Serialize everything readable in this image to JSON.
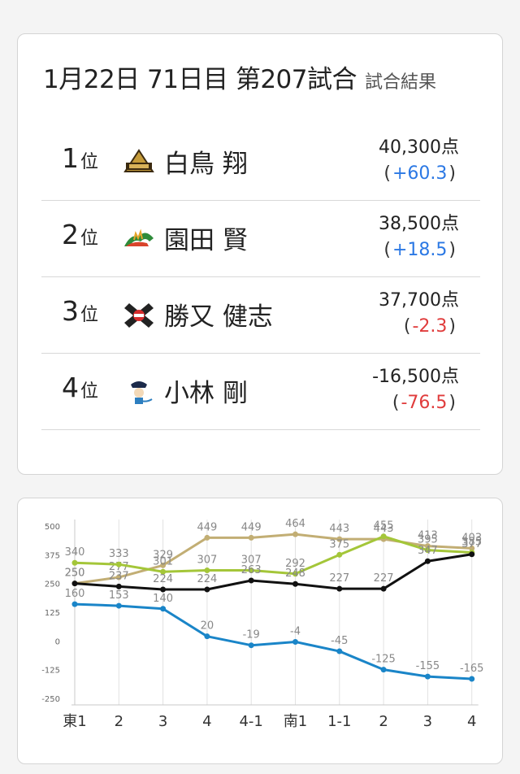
{
  "header": {
    "title": "1月22日 71日目 第207試合",
    "subtitle": "試合結果"
  },
  "results": [
    {
      "rank": "1",
      "rank_suffix": "位",
      "name": "白鳥 翔",
      "score": "40,300点",
      "delta": "+60.3",
      "sign": "pos",
      "team_icon": "gold-team-logo"
    },
    {
      "rank": "2",
      "rank_suffix": "位",
      "name": "園田 賢",
      "score": "38,500点",
      "delta": "+18.5",
      "sign": "pos",
      "team_icon": "green-dragon-team-logo"
    },
    {
      "rank": "3",
      "rank_suffix": "位",
      "name": "勝又 健志",
      "score": "37,700点",
      "delta": "-2.3",
      "sign": "neg",
      "team_icon": "red-x-team-logo"
    },
    {
      "rank": "4",
      "rank_suffix": "位",
      "name": "小林 剛",
      "score": "-16,500点",
      "delta": "-76.5",
      "sign": "neg",
      "team_icon": "pirate-team-logo"
    }
  ],
  "colors": {
    "positive": "#2b78e4",
    "negative": "#e03c3c"
  },
  "chart_data": {
    "type": "line",
    "categories": [
      "東1",
      "2",
      "3",
      "4",
      "4-1",
      "南1",
      "1-1",
      "2",
      "3",
      "4"
    ],
    "yticks": [
      "500",
      "375",
      "250",
      "125",
      "0",
      "-125",
      "-250"
    ],
    "ylim": [
      -250,
      500
    ],
    "grid": true,
    "series": [
      {
        "color": "#c2ae74",
        "values": [
          250,
          277,
          329,
          449,
          449,
          464,
          443,
          443,
          413,
          403
        ],
        "labels": [
          "250",
          "277",
          "329",
          "449",
          "449",
          "464",
          "443",
          "443",
          "413",
          "403"
        ]
      },
      {
        "color": "#a4c639",
        "values": [
          340,
          333,
          301,
          307,
          307,
          292,
          375,
          455,
          395,
          385
        ],
        "labels": [
          "340",
          "333",
          "301",
          "307",
          "307",
          "292",
          "375",
          "455",
          "395",
          "385"
        ]
      },
      {
        "color": "#111111",
        "values": [
          250,
          237,
          224,
          224,
          263,
          248,
          227,
          227,
          347,
          377
        ],
        "labels": [
          "250",
          "237",
          "224",
          "224",
          "263",
          "248",
          "227",
          "227",
          "347",
          "377"
        ]
      },
      {
        "color": "#1a85c8",
        "values": [
          160,
          153,
          140,
          20,
          -19,
          -4,
          -45,
          -125,
          -155,
          -165
        ],
        "labels": [
          "160",
          "153",
          "140",
          "20",
          "-19",
          "-4",
          "-45",
          "-125",
          "-155",
          "-165"
        ]
      }
    ]
  }
}
